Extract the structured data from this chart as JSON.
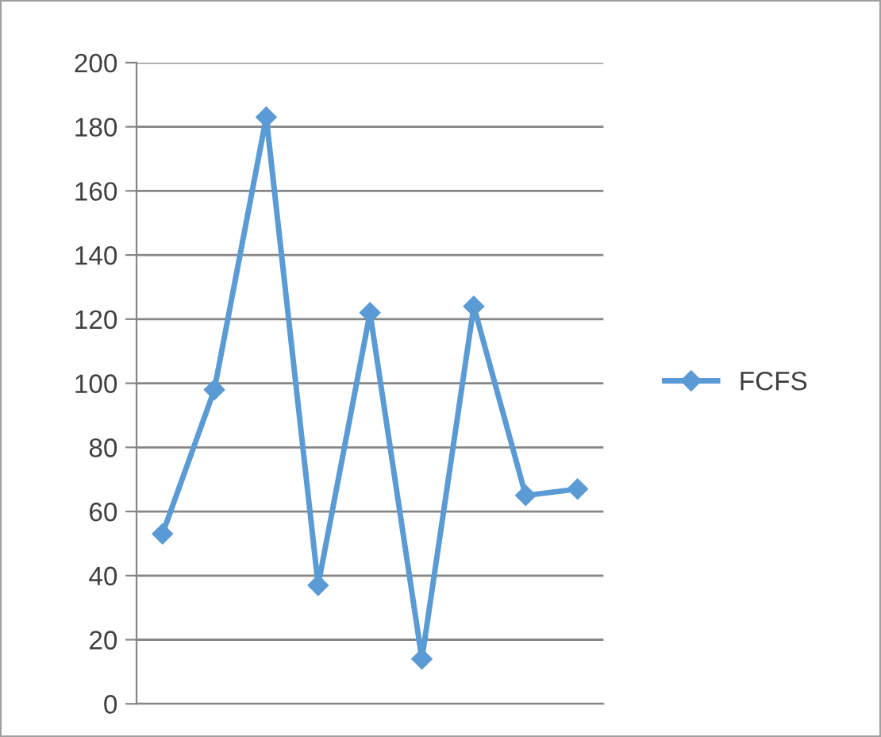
{
  "chart_data": {
    "type": "line",
    "categories": [
      null,
      null,
      null,
      null,
      null,
      null,
      null,
      null,
      null
    ],
    "series": [
      {
        "name": "FCFS",
        "color": "#5b9bd5",
        "values": [
          53,
          98,
          183,
          37,
          122,
          14,
          124,
          65,
          67
        ]
      }
    ],
    "ylim": [
      0,
      200
    ],
    "yticks": [
      0,
      20,
      40,
      60,
      80,
      100,
      120,
      140,
      160,
      180,
      200
    ],
    "grid": "y",
    "legend": "right",
    "marker": "diamond",
    "line_style": "solid"
  }
}
